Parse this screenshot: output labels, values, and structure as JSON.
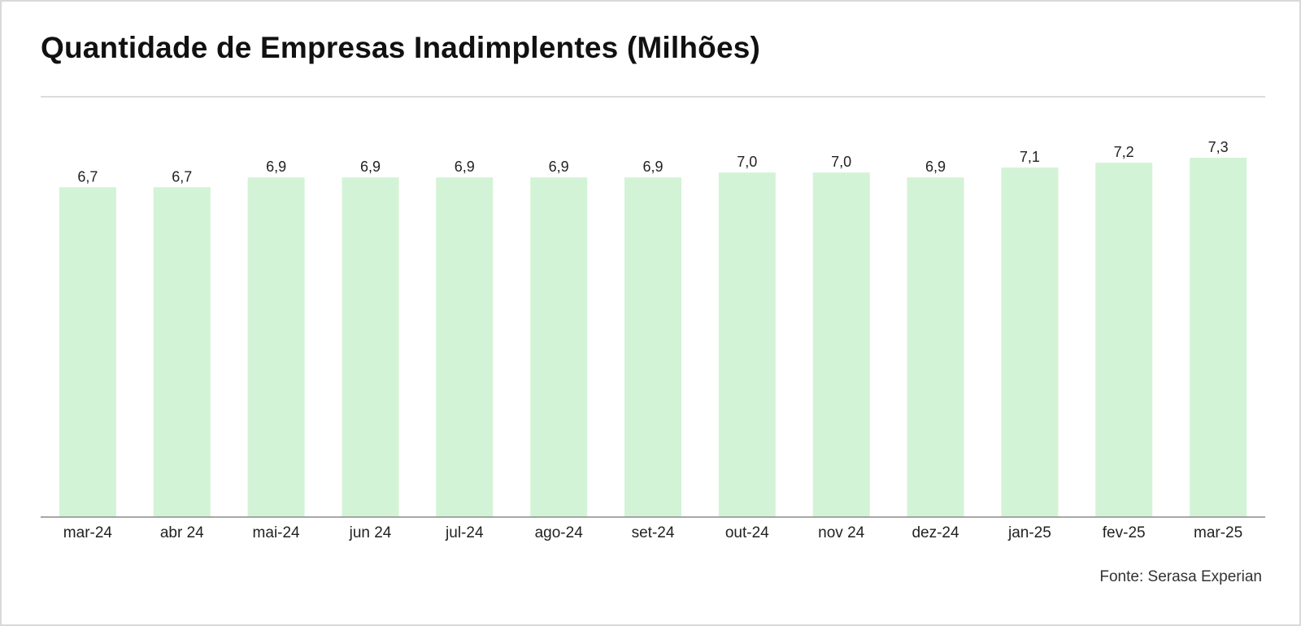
{
  "title": "Quantidade de Empresas Inadimplentes (Milhões)",
  "source": "Fonte: Serasa Experian",
  "colors": {
    "bar": "#d3f3d6",
    "axis": "#8c8c8c",
    "text": "#222222"
  },
  "chart_data": {
    "type": "bar",
    "title": "Quantidade de Empresas Inadimplentes (Milhões)",
    "categories": [
      "mar-24",
      "abr 24",
      "mai-24",
      "jun 24",
      "jul-24",
      "ago-24",
      "set-24",
      "out-24",
      "nov 24",
      "dez-24",
      "jan-25",
      "fev-25",
      "mar-25"
    ],
    "values": [
      6.7,
      6.7,
      6.9,
      6.9,
      6.9,
      6.9,
      6.9,
      7.0,
      7.0,
      6.9,
      7.1,
      7.2,
      7.3
    ],
    "data_labels": [
      "6,7",
      "6,7",
      "6,9",
      "6,9",
      "6,9",
      "6,9",
      "6,9",
      "7,0",
      "7,0",
      "6,9",
      "7,1",
      "7,2",
      "7,3"
    ],
    "xlabel": "",
    "ylabel": "",
    "ylim": [
      0,
      7.3
    ],
    "grid": false,
    "legend": "none"
  }
}
